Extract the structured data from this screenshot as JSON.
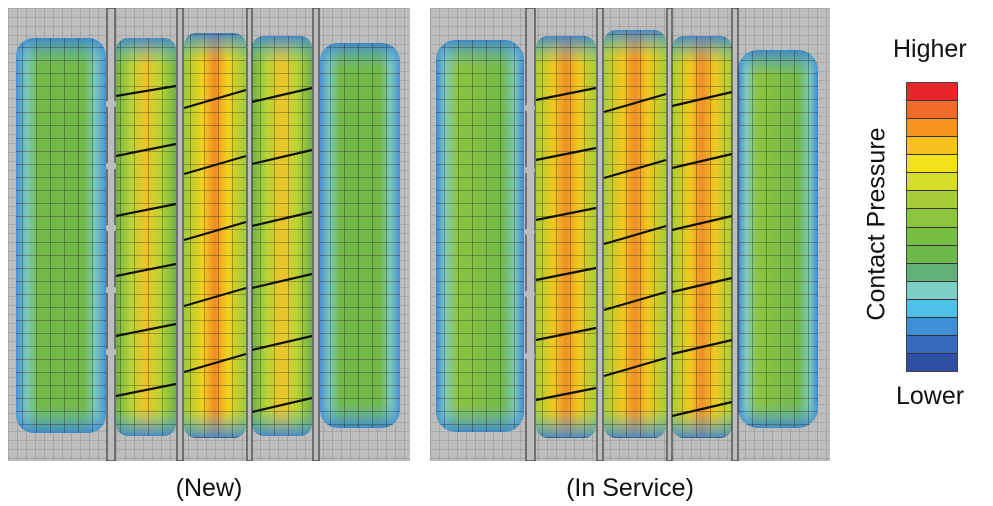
{
  "captions": {
    "new": "(New)",
    "in_service": "(In Service)"
  },
  "legend": {
    "title": "Contact Pressure",
    "high_label": "Higher",
    "low_label": "Lower",
    "scale_colors": [
      "#e8242b",
      "#f26b2a",
      "#f7931e",
      "#f7c01e",
      "#f3e21a",
      "#d6dc2a",
      "#a6cc3a",
      "#8cc63f",
      "#77be44",
      "#6db84a",
      "#63b07a",
      "#7ccfc4",
      "#4fc0e8",
      "#3e8fd6",
      "#3569bd",
      "#2f4fa5"
    ]
  },
  "colors": {
    "background_gray": "#bdbdbd",
    "mesh_line": "#1a1a1a"
  }
}
